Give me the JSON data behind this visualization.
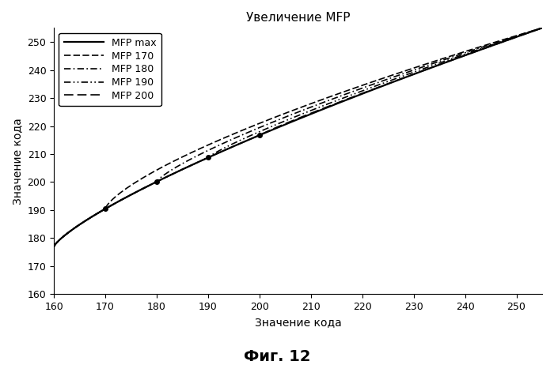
{
  "title": "Увеличение MFP",
  "xlabel": "Значение кода",
  "ylabel": "Значение кода",
  "figcaption": "Фиг. 12",
  "xlim": [
    160,
    255
  ],
  "ylim": [
    160,
    255
  ],
  "xticks": [
    160,
    170,
    180,
    190,
    200,
    210,
    220,
    230,
    240,
    250
  ],
  "yticks": [
    160,
    170,
    180,
    190,
    200,
    210,
    220,
    230,
    240,
    250
  ],
  "x_start": 160,
  "x_end": 255,
  "curves": [
    {
      "label": "MFP max",
      "mfp": 255,
      "gamma": 0.58
    },
    {
      "label": "MFP 170",
      "mfp": 170,
      "gamma": 0.645
    },
    {
      "label": "MFP 180",
      "mfp": 180,
      "gamma": 0.71
    },
    {
      "label": "MFP 190",
      "mfp": 190,
      "gamma": 0.775
    },
    {
      "label": "MFP 200",
      "mfp": 200,
      "gamma": 0.84
    }
  ],
  "dot_points": [
    [
      170,
      188.5
    ],
    [
      180,
      200.0
    ],
    [
      190,
      211.0
    ],
    [
      200,
      222.0
    ]
  ],
  "color": "#000000",
  "background_color": "#ffffff",
  "legend_fontsize": 9,
  "axis_fontsize": 10,
  "title_fontsize": 11,
  "caption_fontsize": 14,
  "figsize": [
    7.0,
    4.62
  ],
  "dpi": 100
}
